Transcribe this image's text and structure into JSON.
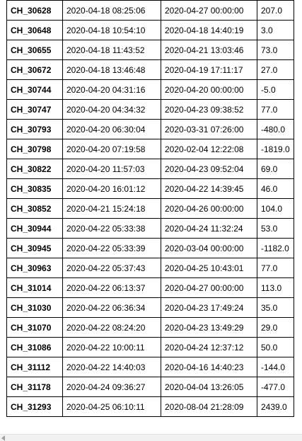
{
  "table": {
    "rows": [
      [
        "CH_30628",
        "2020-04-18 08:25:06",
        "2020-04-27 00:00:00",
        "207.0"
      ],
      [
        "CH_30648",
        "2020-04-18 10:54:10",
        "2020-04-18 14:40:19",
        "3.0"
      ],
      [
        "CH_30655",
        "2020-04-18 11:43:52",
        "2020-04-21 13:03:46",
        "73.0"
      ],
      [
        "CH_30672",
        "2020-04-18 13:46:48",
        "2020-04-19 17:11:17",
        "27.0"
      ],
      [
        "CH_30744",
        "2020-04-20 04:31:16",
        "2020-04-20 00:00:00",
        "-5.0"
      ],
      [
        "CH_30747",
        "2020-04-20 04:34:32",
        "2020-04-23 09:38:52",
        "77.0"
      ],
      [
        "CH_30793",
        "2020-04-20 06:30:04",
        "2020-03-31 07:26:00",
        "-480.0"
      ],
      [
        "CH_30798",
        "2020-04-20 07:19:58",
        "2020-02-04 12:22:08",
        "-1819.0"
      ],
      [
        "CH_30822",
        "2020-04-20 11:57:03",
        "2020-04-23 09:52:04",
        "69.0"
      ],
      [
        "CH_30835",
        "2020-04-20 16:01:12",
        "2020-04-22 14:39:45",
        "46.0"
      ],
      [
        "CH_30852",
        "2020-04-21 15:24:18",
        "2020-04-26 00:00:00",
        "104.0"
      ],
      [
        "CH_30944",
        "2020-04-22 05:33:38",
        "2020-04-24 11:32:24",
        "53.0"
      ],
      [
        "CH_30945",
        "2020-04-22 05:33:39",
        "2020-03-04 00:00:00",
        "-1182.0"
      ],
      [
        "CH_30963",
        "2020-04-22 05:37:43",
        "2020-04-25 10:43:01",
        "77.0"
      ],
      [
        "CH_31014",
        "2020-04-22 06:13:37",
        "2020-04-27 00:00:00",
        "113.0"
      ],
      [
        "CH_31030",
        "2020-04-22 06:36:34",
        "2020-04-23 17:49:24",
        "35.0"
      ],
      [
        "CH_31070",
        "2020-04-22 08:24:20",
        "2020-04-23 13:49:29",
        "29.0"
      ],
      [
        "CH_31086",
        "2020-04-22 10:00:11",
        "2020-04-24 12:37:12",
        "50.0"
      ],
      [
        "CH_31112",
        "2020-04-22 14:40:03",
        "2020-04-16 14:40:23",
        "-144.0"
      ],
      [
        "CH_31178",
        "2020-04-24 09:36:27",
        "2020-04-04 13:26:05",
        "-477.0"
      ],
      [
        "CH_31293",
        "2020-04-25 06:10:11",
        "2020-08-04 21:28:09",
        "2439.0"
      ]
    ]
  }
}
